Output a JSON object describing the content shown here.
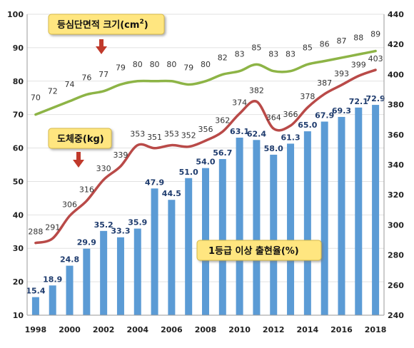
{
  "chart_data": {
    "type": "bar",
    "x": [
      "1998",
      "1999",
      "2000",
      "2001",
      "2002",
      "2003",
      "2004",
      "2005",
      "2006",
      "2007",
      "2008",
      "2009",
      "2010",
      "2011",
      "2012",
      "2013",
      "2014",
      "2015",
      "2016",
      "2017",
      "2018"
    ],
    "x_tick_labels": [
      "1998",
      "2000",
      "2002",
      "2004",
      "2006",
      "2008",
      "2010",
      "2012",
      "2014",
      "2016",
      "2018"
    ],
    "left_axis": {
      "ylim": [
        10,
        100
      ],
      "ticks": [
        "10",
        "20",
        "30",
        "40",
        "50",
        "60",
        "70",
        "80",
        "90",
        "100"
      ]
    },
    "right_axis": {
      "ylim": [
        240,
        440
      ],
      "ticks": [
        "240",
        "260",
        "280",
        "300",
        "320",
        "340",
        "360",
        "380",
        "400",
        "420",
        "440"
      ]
    },
    "series": [
      {
        "name": "1등급 이상 출현율(%)",
        "type": "bar",
        "axis": "left",
        "color": "#5b9bd5",
        "values": [
          15.4,
          18.9,
          24.8,
          29.9,
          35.2,
          33.3,
          35.9,
          47.9,
          44.5,
          51.0,
          54.0,
          56.7,
          63.1,
          62.4,
          58.0,
          61.3,
          65.0,
          67.9,
          69.3,
          72.1,
          72.9
        ],
        "labels": [
          "15.4",
          "18.9",
          "24.8",
          "29.9",
          "35.2",
          "33.3",
          "35.9",
          "47.9",
          "44.5",
          "51.0",
          "54.0",
          "56.7",
          "63.1",
          "62.4",
          "58.0",
          "61.3",
          "65.0",
          "67.9",
          "69.3",
          "72.1",
          "72.9"
        ]
      },
      {
        "name": "등심단면적 크기(cm²)",
        "type": "line",
        "axis": "left",
        "color": "#8db446",
        "values": [
          70,
          72,
          74,
          76,
          77,
          79,
          80,
          80,
          80,
          79,
          80,
          82,
          83,
          85,
          83,
          83,
          85,
          86,
          87,
          88,
          89
        ],
        "labels": [
          "70",
          "72",
          "74",
          "76",
          "77",
          "79",
          "80",
          "80",
          "80",
          "79",
          "80",
          "82",
          "83",
          "85",
          "83",
          "83",
          "85",
          "86",
          "87",
          "88",
          "89"
        ]
      },
      {
        "name": "도체중(kg)",
        "type": "line",
        "axis": "right",
        "color": "#b94a48",
        "values": [
          288,
          291,
          306,
          316,
          330,
          339,
          353,
          351,
          353,
          352,
          356,
          362,
          374,
          382,
          364,
          366,
          378,
          387,
          393,
          399,
          403
        ],
        "labels": [
          "288",
          "291",
          "306",
          "316",
          "330",
          "339",
          "353",
          "351",
          "353",
          "352",
          "356",
          "362",
          "374",
          "382",
          "364",
          "366",
          "378",
          "387",
          "393",
          "399",
          "403"
        ]
      }
    ],
    "callouts": {
      "area": "등심단면적 크기(cm",
      "area_sup": "2",
      "area_close": ")",
      "weight": "도체중(kg)",
      "rate": "1등급 이상 출현율(%)"
    },
    "colors": {
      "callout_fill": "#ffe680",
      "arrow": "#c0392b",
      "grid": "#e2e2e2"
    }
  }
}
